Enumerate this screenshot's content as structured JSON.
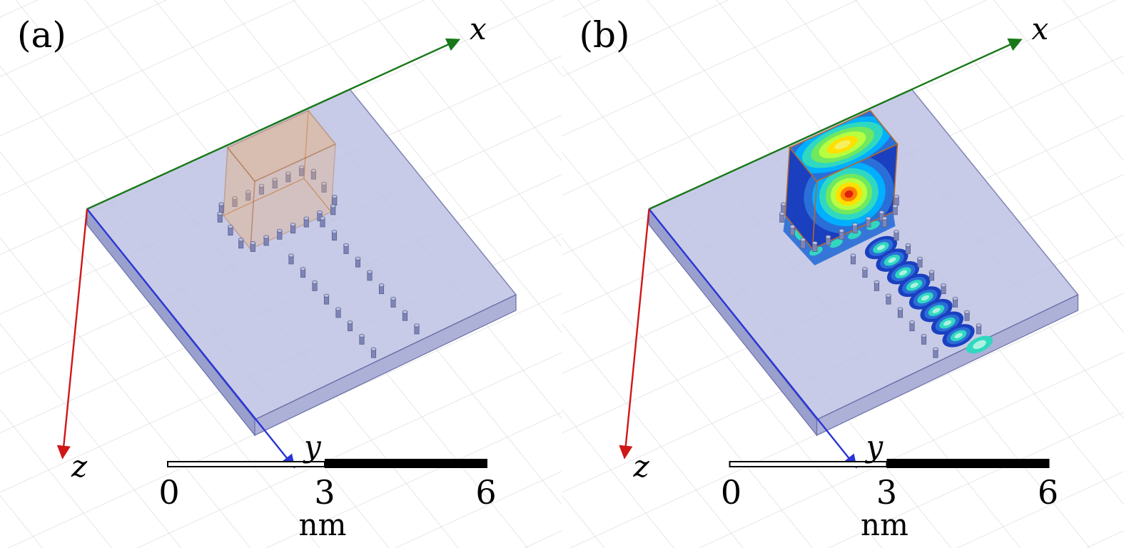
{
  "figure": {
    "panel_a": {
      "label": "(a)"
    },
    "panel_b": {
      "label": "(b)"
    },
    "axes": {
      "x": {
        "label": "x",
        "color": "#177817"
      },
      "y": {
        "label": "y",
        "color": "#2a35d6"
      },
      "z": {
        "label": "z",
        "color": "#d01717"
      }
    },
    "scalebar": {
      "ticks": [
        "0",
        "3",
        "6"
      ],
      "unit": "nm"
    },
    "colors": {
      "background": "#ffffff",
      "grid": "#d8d8d8",
      "slab_top": "#bec2e3",
      "slab_side_left": "#9aa0cd",
      "slab_side_right": "#adb1d8",
      "slab_edge": "#6b6fa8",
      "box_fill": "#eab07c",
      "box_edge": "#b26a2f",
      "pillar_body": "#7d85b8",
      "pillar_top": "#b9c0e2",
      "pillar_edge": "#565b86",
      "scalebar_black": "#000000",
      "field_pale": "#aaf2e2",
      "field_top_center": "#f6ef5e",
      "field_palette": [
        "#1a3fbf",
        "#2a6fd8",
        "#00afff",
        "#30d8c0",
        "#70e860",
        "#b7ff40",
        "#ffe000",
        "#ff8000",
        "#e02010"
      ]
    }
  }
}
